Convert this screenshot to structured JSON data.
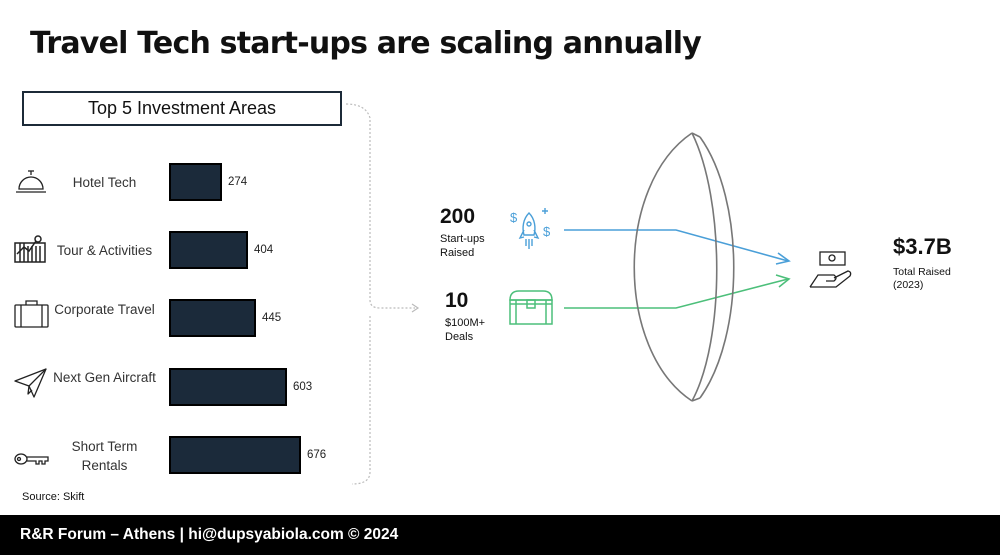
{
  "title": "Travel Tech start-ups are scaling annually",
  "chart_data": {
    "type": "bar",
    "orientation": "horizontal",
    "title": "Top 5 Investment Areas",
    "categories": [
      "Hotel Tech",
      "Tour & Activities",
      "Corporate Travel",
      "Next Gen Aircraft",
      "Short Term Rentals"
    ],
    "category_icons": [
      "service-bell-icon",
      "ticket-icon",
      "briefcase-icon",
      "paper-plane-icon",
      "key-icon"
    ],
    "values": [
      274,
      404,
      445,
      603,
      676
    ],
    "bar_color": "#1b2a3a",
    "xlim": [
      0,
      700
    ]
  },
  "source": "Source: Skift",
  "stats": [
    {
      "value": "200",
      "label": "Start-ups\nRaised",
      "icon": "rocket-dollar-icon",
      "color": "#4a9fd8"
    },
    {
      "value": "10",
      "label": "$100M+\nDeals",
      "icon": "treasure-chest-icon",
      "color": "#4cbf7a"
    }
  ],
  "total": {
    "value": "$3.7B",
    "label": "Total Raised\n(2023)",
    "icon": "money-hand-icon"
  },
  "footer": "R&R Forum – Athens | hi@dupsyabiola.com © 2024"
}
